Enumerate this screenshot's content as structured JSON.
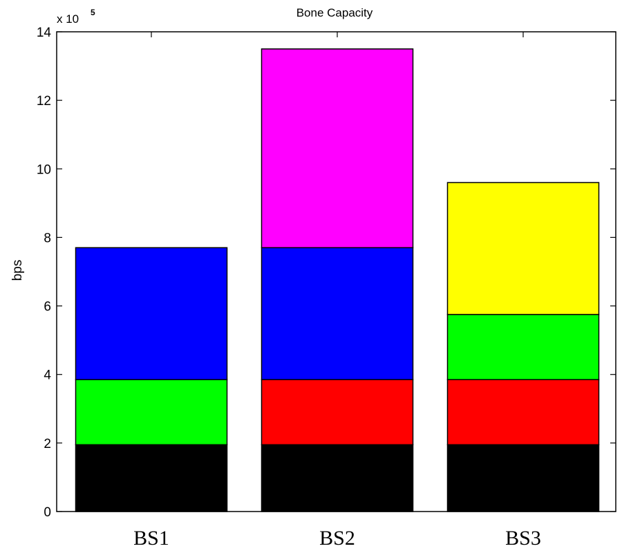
{
  "chart_data": {
    "type": "bar",
    "stacked": true,
    "title": "Bone Capacity",
    "xlabel": "",
    "ylabel": "bps",
    "y_multiplier_label": {
      "base": "x 10",
      "exponent": "5"
    },
    "ylim": [
      0,
      14
    ],
    "yticks": [
      "0",
      "2",
      "4",
      "6",
      "8",
      "10",
      "12",
      "14"
    ],
    "categories": [
      "BS1",
      "BS2",
      "BS3"
    ],
    "grid": false,
    "legend": "none",
    "segments": [
      [
        {
          "value": 1.95,
          "color": "#000000"
        },
        {
          "value": 1.9,
          "color": "#00ff00"
        },
        {
          "value": 3.85,
          "color": "#0000ff"
        }
      ],
      [
        {
          "value": 1.95,
          "color": "#000000"
        },
        {
          "value": 1.9,
          "color": "#ff0000"
        },
        {
          "value": 3.85,
          "color": "#0000ff"
        },
        {
          "value": 5.8,
          "color": "#ff00ff"
        }
      ],
      [
        {
          "value": 1.95,
          "color": "#000000"
        },
        {
          "value": 1.9,
          "color": "#ff0000"
        },
        {
          "value": 1.9,
          "color": "#00ff00"
        },
        {
          "value": 3.85,
          "color": "#ffff00"
        }
      ]
    ]
  }
}
